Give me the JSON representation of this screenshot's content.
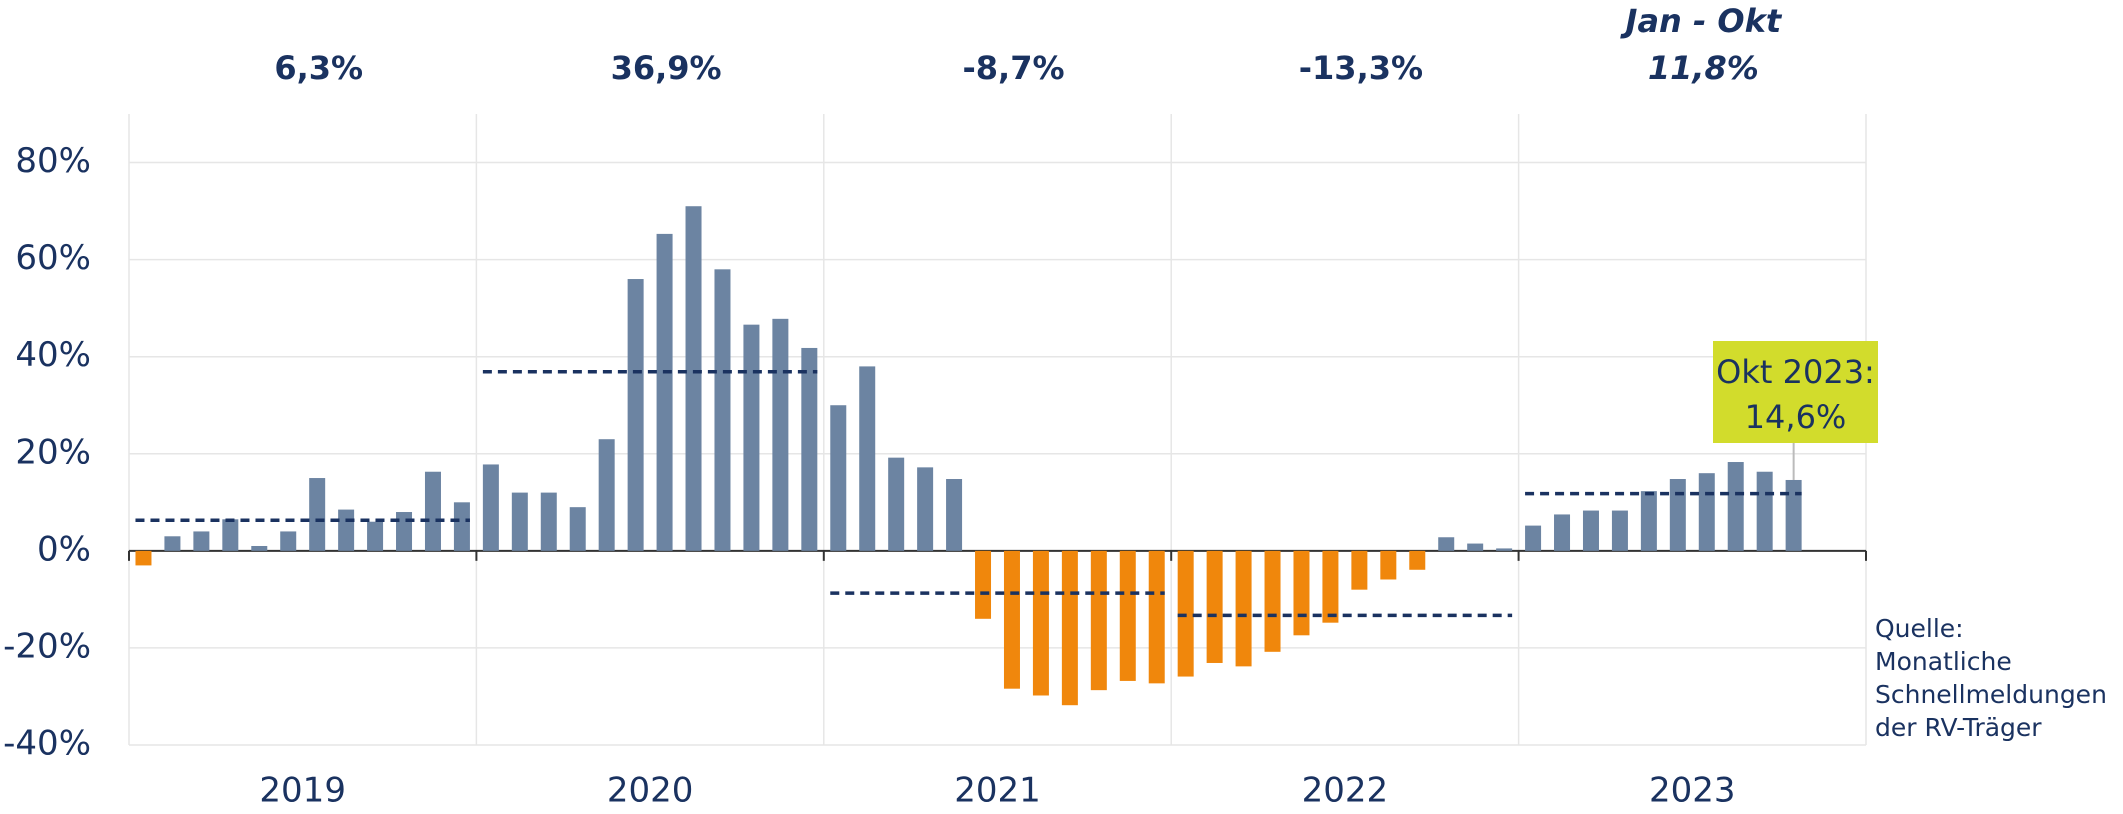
{
  "chart_data": {
    "type": "bar",
    "groups": [
      "2019",
      "2020",
      "2021",
      "2022",
      "2023"
    ],
    "values": [
      [
        -3,
        3,
        4,
        6.5,
        1,
        4,
        15,
        8.5,
        6,
        8,
        16.3,
        10
      ],
      [
        17.8,
        12,
        12,
        9,
        23,
        56,
        65.3,
        71,
        58,
        46.6,
        47.8,
        41.8
      ],
      [
        30,
        38,
        19.2,
        17.2,
        14.8,
        -14,
        -28.4,
        -29.8,
        -31.8,
        -28.7,
        -26.8,
        -27.3
      ],
      [
        -25.9,
        -23.1,
        -23.8,
        -20.8,
        -17.4,
        -14.8,
        -8,
        -5.9,
        -3.9,
        2.8,
        1.5,
        0.5
      ],
      [
        5.2,
        7.5,
        8.3,
        8.3,
        12.3,
        14.8,
        16,
        18.3,
        16.3,
        14.6
      ]
    ],
    "annual": {
      "values": [
        6.3,
        36.9,
        -8.7,
        -13.3,
        11.8
      ],
      "value_labels": [
        "6,3%",
        "36,9%",
        "-8,7%",
        "-13,3%",
        "11,8%"
      ],
      "note": "Jan - Okt",
      "color": "#1a3260"
    },
    "callout": {
      "label": "Okt 2023:",
      "value_label": "14,6%",
      "color": "#d2dc2c"
    },
    "source": [
      "Quelle:",
      "Monatliche",
      "Schnellmeldungen",
      "der RV-Träger"
    ],
    "colors": {
      "positive": "#6c84a2",
      "negative": "#f0870c"
    },
    "ylim": [
      -40,
      90
    ],
    "yticks": [
      {
        "value": -40,
        "label": "-40%"
      },
      {
        "value": -20,
        "label": "-20%"
      },
      {
        "value": 0,
        "label": "0%"
      },
      {
        "value": 20,
        "label": "20%"
      },
      {
        "value": 40,
        "label": "40%"
      },
      {
        "value": 60,
        "label": "60%"
      },
      {
        "value": 80,
        "label": "80%"
      }
    ],
    "grid": true
  }
}
